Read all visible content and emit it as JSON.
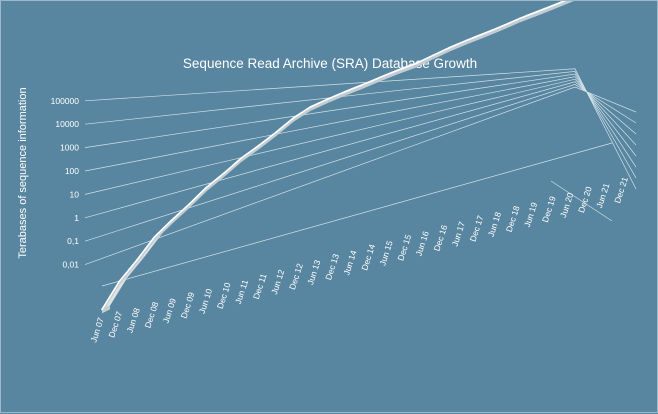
{
  "chart_data": {
    "type": "area",
    "title": "Sequence Read Archive (SRA) Database Growth",
    "xlabel": "",
    "ylabel": "Terabases of sequence information",
    "y_scale": "log10",
    "y_ticks": [
      "0,01",
      "0,1",
      "1",
      "10",
      "100",
      "1000",
      "10000",
      "100000"
    ],
    "grid": true,
    "categories": [
      "Jun 07",
      "Dec 07",
      "Jun 08",
      "Dec 08",
      "Jun 09",
      "Dec 09",
      "Jun 10",
      "Dec 10",
      "Jun 11",
      "Dec 11",
      "Jun 12",
      "Dec 12",
      "Jun 13",
      "Dec 13",
      "Jun 14",
      "Dec 14",
      "Jun 15",
      "Dec 15",
      "Jun 16",
      "Dec 16",
      "Jun 17",
      "Dec 17",
      "Jun 18",
      "Dec 18",
      "Jun 19",
      "Dec 19",
      "Jun 20",
      "Dec 20",
      "Jun 21",
      "Dec 21"
    ],
    "series": [
      {
        "values": [
          0.001,
          0.01,
          0.05,
          0.3,
          1,
          3,
          10,
          25,
          70,
          150,
          350,
          900,
          1700,
          2300,
          3000,
          3700,
          4800,
          6000,
          7000,
          10000,
          14000,
          18000,
          22000,
          28000,
          37000,
          45000,
          55000,
          70000,
          85000,
          100000
        ]
      }
    ],
    "colors": {
      "background": "#5886a0",
      "ribbon_top": "#dde4e8",
      "ribbon_front": "#c2cdd3",
      "edge": "#ffffff",
      "grid": "#d2e0e8",
      "text": "#ffffff"
    }
  }
}
